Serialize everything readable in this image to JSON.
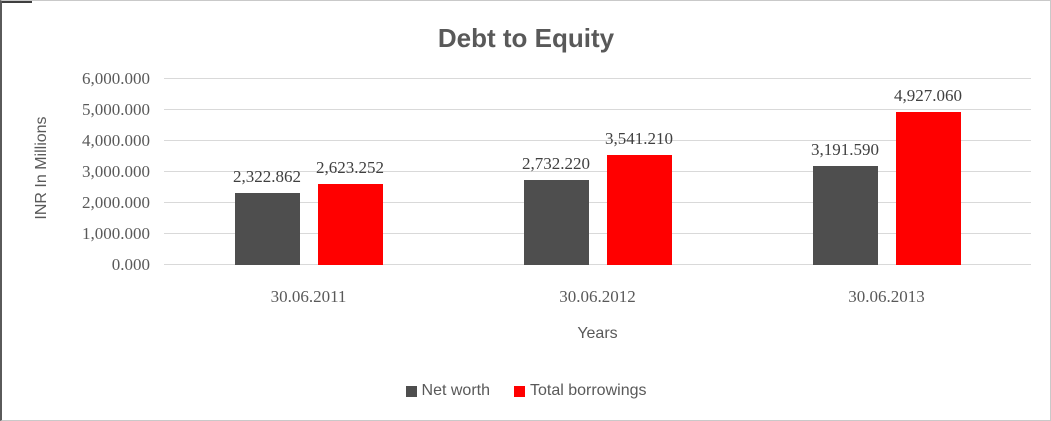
{
  "chart_data": {
    "type": "bar",
    "title": "Debt to Equity",
    "xlabel": "Years",
    "ylabel": "INR In Millions",
    "categories": [
      "30.06.2011",
      "30.06.2012",
      "30.06.2013"
    ],
    "series": [
      {
        "name": "Net worth",
        "color": "#4e4e4e",
        "values": [
          2322.862,
          2732.22,
          3191.59
        ],
        "labels": [
          "2,322.862",
          "2,732.220",
          "3,191.590"
        ]
      },
      {
        "name": "Total borrowings",
        "color": "#ff0000",
        "values": [
          2623.252,
          3541.21,
          4927.06
        ],
        "labels": [
          "2,623.252",
          "3,541.210",
          "4,927.060"
        ]
      }
    ],
    "ylim": [
      0,
      6000
    ],
    "ytick_step": 1000,
    "ytick_labels": [
      "0.000",
      "1,000.000",
      "2,000.000",
      "3,000.000",
      "4,000.000",
      "5,000.000",
      "6,000.000"
    ],
    "grid": true,
    "grid_color": "#d9d9d9",
    "text_color": "#595959",
    "legend_position": "bottom"
  }
}
